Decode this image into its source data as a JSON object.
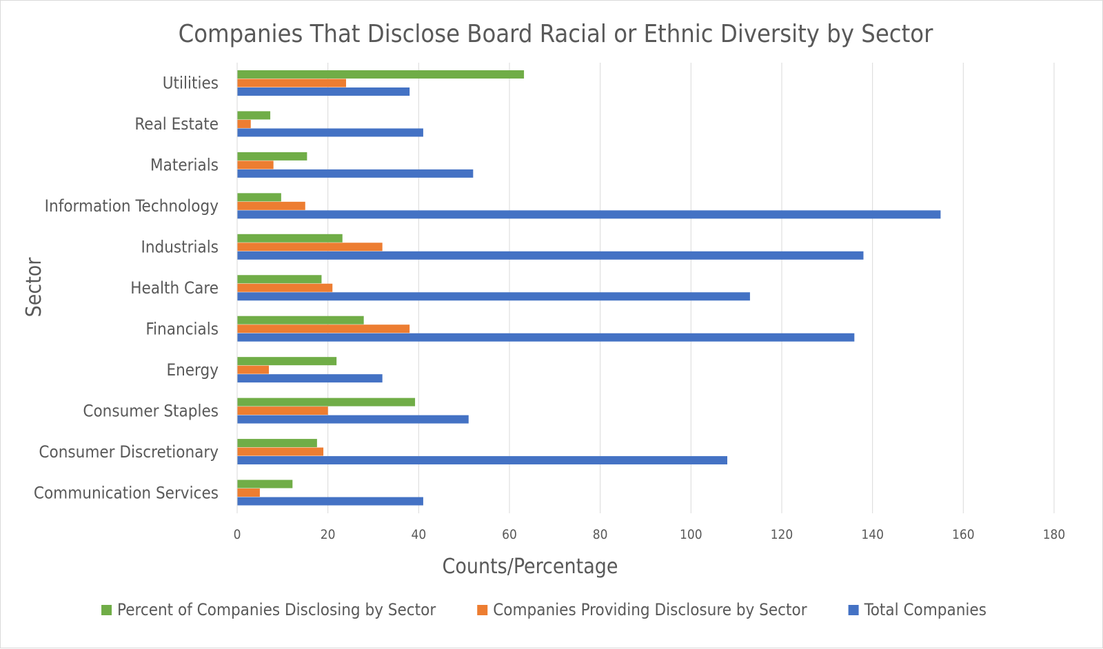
{
  "chart_data": {
    "type": "bar",
    "orientation": "horizontal",
    "title": "Companies That Disclose Board Racial or Ethnic Diversity by Sector",
    "xlabel": "Counts/Percentage",
    "ylabel": "Sector",
    "xlim": [
      0,
      180
    ],
    "x_ticks": [
      "0",
      "20",
      "40",
      "60",
      "80",
      "100",
      "120",
      "140",
      "160",
      "180"
    ],
    "grid": true,
    "legend_position": "bottom",
    "categories": [
      "Utilities",
      "Real Estate",
      "Materials",
      "Information Technology",
      "Industrials",
      "Health Care",
      "Financials",
      "Energy",
      "Consumer Staples",
      "Consumer Discretionary",
      "Communication Services"
    ],
    "series": [
      {
        "name": "Percent of Companies Disclosing by Sector",
        "color": "#70ad47",
        "values": [
          63.2,
          7.3,
          15.4,
          9.7,
          23.2,
          18.6,
          27.9,
          21.9,
          39.2,
          17.6,
          12.2
        ]
      },
      {
        "name": "Companies Providing Disclosure by Sector",
        "color": "#ed7d31",
        "values": [
          24,
          3,
          8,
          15,
          32,
          21,
          38,
          7,
          20,
          19,
          5
        ]
      },
      {
        "name": "Total Companies",
        "color": "#4472c4",
        "values": [
          38,
          41,
          52,
          155,
          138,
          113,
          136,
          32,
          51,
          108,
          41
        ]
      }
    ]
  }
}
